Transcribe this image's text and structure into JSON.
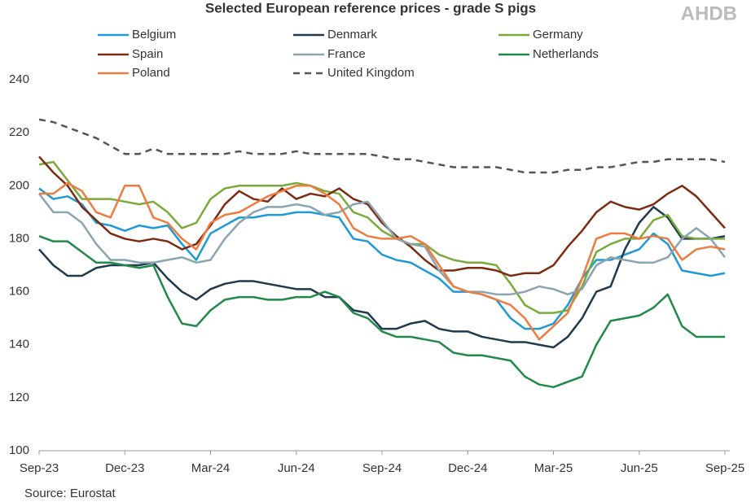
{
  "chart_data": {
    "type": "line",
    "title": "Selected European reference prices - grade S pigs",
    "logo": "AHDB",
    "source": "Source: Eurostat",
    "categories": [
      "Sep-23",
      null,
      null,
      null,
      null,
      null,
      "Dec-23",
      null,
      null,
      null,
      null,
      null,
      "Mar-24",
      null,
      null,
      null,
      null,
      null,
      "Jun-24",
      null,
      null,
      null,
      null,
      null,
      "Sep-24",
      null,
      null,
      null,
      null,
      null,
      "Dec-24",
      null,
      null,
      null,
      null,
      null,
      "Mar-25",
      null,
      null,
      null,
      null,
      null,
      "Jun-25",
      null,
      null,
      null,
      null,
      null,
      "Sep-25"
    ],
    "ylim": [
      100,
      240
    ],
    "yticks": [
      100,
      120,
      140,
      160,
      180,
      200,
      220,
      240
    ],
    "grid": false,
    "legend": "top",
    "series": [
      {
        "name": "Belgium",
        "color": "#1e9ad6",
        "values": [
          199,
          195,
          196,
          193,
          186,
          185,
          183,
          185,
          184,
          185,
          178,
          172,
          182,
          185,
          188,
          188,
          189,
          189,
          190,
          190,
          189,
          188,
          180,
          179,
          174,
          172,
          171,
          168,
          165,
          160,
          160,
          159,
          157,
          150,
          146,
          146,
          148,
          155,
          165,
          172,
          172,
          174,
          176,
          182,
          178,
          168,
          167,
          166,
          167
        ]
      },
      {
        "name": "Denmark",
        "color": "#1f3a4d",
        "values": [
          176,
          170,
          166,
          166,
          169,
          170,
          170,
          170,
          171,
          165,
          160,
          157,
          161,
          163,
          164,
          164,
          163,
          162,
          161,
          161,
          158,
          158,
          153,
          152,
          146,
          146,
          148,
          149,
          146,
          145,
          145,
          143,
          142,
          141,
          141,
          140,
          139,
          143,
          150,
          160,
          162,
          176,
          186,
          192,
          188,
          180,
          180,
          180,
          181
        ]
      },
      {
        "name": "Germany",
        "color": "#7aab3a",
        "values": [
          208,
          209,
          202,
          195,
          195,
          195,
          194,
          193,
          194,
          190,
          184,
          186,
          195,
          199,
          200,
          200,
          200,
          200,
          201,
          200,
          198,
          197,
          190,
          188,
          183,
          180,
          178,
          178,
          174,
          172,
          171,
          171,
          170,
          163,
          155,
          152,
          152,
          153,
          162,
          175,
          178,
          180,
          180,
          187,
          189,
          181,
          180,
          180,
          180
        ]
      },
      {
        "name": "Spain",
        "color": "#7b2b12",
        "values": [
          211,
          205,
          200,
          192,
          187,
          182,
          180,
          179,
          180,
          179,
          176,
          178,
          185,
          193,
          198,
          195,
          194,
          199,
          195,
          197,
          196,
          199,
          195,
          193,
          186,
          181,
          177,
          172,
          168,
          168,
          169,
          169,
          168,
          166,
          167,
          167,
          170,
          177,
          183,
          190,
          194,
          192,
          191,
          193,
          197,
          200,
          196,
          190,
          184
        ]
      },
      {
        "name": "France",
        "color": "#8aa5b0",
        "values": [
          197,
          190,
          190,
          186,
          178,
          172,
          172,
          171,
          171,
          172,
          173,
          171,
          172,
          180,
          186,
          190,
          192,
          192,
          193,
          192,
          189,
          190,
          193,
          194,
          187,
          180,
          178,
          177,
          168,
          162,
          160,
          160,
          159,
          159,
          160,
          162,
          161,
          159,
          161,
          170,
          173,
          172,
          171,
          171,
          173,
          180,
          184,
          180,
          173
        ]
      },
      {
        "name": "Netherlands",
        "color": "#1f8a4a",
        "values": [
          181,
          179,
          179,
          175,
          171,
          171,
          170,
          169,
          170,
          158,
          148,
          147,
          153,
          157,
          158,
          158,
          157,
          157,
          158,
          158,
          160,
          158,
          152,
          150,
          145,
          143,
          143,
          142,
          141,
          137,
          136,
          136,
          135,
          134,
          128,
          125,
          124,
          126,
          128,
          140,
          149,
          150,
          151,
          154,
          159,
          147,
          143,
          143,
          143
        ]
      },
      {
        "name": "Poland",
        "color": "#f07b3f",
        "values": [
          197,
          197,
          201,
          198,
          190,
          188,
          200,
          200,
          188,
          186,
          180,
          176,
          186,
          189,
          190,
          193,
          196,
          198,
          200,
          200,
          197,
          193,
          184,
          181,
          180,
          180,
          181,
          178,
          170,
          162,
          160,
          159,
          157,
          155,
          150,
          142,
          147,
          152,
          165,
          180,
          182,
          182,
          180,
          181,
          180,
          172,
          176,
          177,
          176
        ]
      },
      {
        "name": "United Kingdom",
        "color": "#555555",
        "dashed": true,
        "values": [
          225,
          224,
          222,
          220,
          218,
          215,
          212,
          212,
          214,
          212,
          212,
          212,
          212,
          212,
          213,
          212,
          212,
          212,
          213,
          212,
          212,
          212,
          212,
          212,
          211,
          210,
          210,
          209,
          208,
          207,
          207,
          207,
          207,
          206,
          205,
          205,
          205,
          206,
          206,
          207,
          207,
          208,
          209,
          209,
          210,
          210,
          210,
          210,
          209
        ]
      }
    ]
  }
}
